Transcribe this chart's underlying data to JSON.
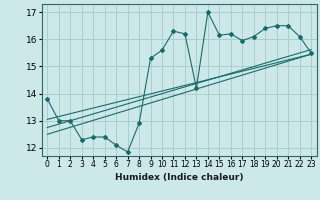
{
  "xlabel": "Humidex (Indice chaleur)",
  "ylabel": "",
  "bg_color": "#cce8e8",
  "grid_color": "#aacfcf",
  "line_color": "#1a6b6b",
  "xlim": [
    -0.5,
    23.5
  ],
  "ylim": [
    11.7,
    17.3
  ],
  "xticks": [
    0,
    1,
    2,
    3,
    4,
    5,
    6,
    7,
    8,
    9,
    10,
    11,
    12,
    13,
    14,
    15,
    16,
    17,
    18,
    19,
    20,
    21,
    22,
    23
  ],
  "yticks": [
    12,
    13,
    14,
    15,
    16,
    17
  ],
  "main_x": [
    0,
    1,
    2,
    3,
    4,
    5,
    6,
    7,
    8,
    9,
    10,
    11,
    12,
    13,
    14,
    15,
    16,
    17,
    18,
    19,
    20,
    21,
    22,
    23
  ],
  "main_y": [
    13.8,
    13.0,
    13.0,
    12.3,
    12.4,
    12.4,
    12.1,
    11.85,
    12.9,
    15.3,
    15.6,
    16.3,
    16.2,
    14.2,
    17.0,
    16.15,
    16.2,
    15.95,
    16.1,
    16.4,
    16.5,
    16.5,
    16.1,
    15.5
  ],
  "trend1_x": [
    0,
    23
  ],
  "trend1_y": [
    12.5,
    15.45
  ],
  "trend2_x": [
    0,
    23
  ],
  "trend2_y": [
    12.75,
    15.62
  ],
  "trend3_x": [
    0,
    23
  ],
  "trend3_y": [
    13.05,
    15.45
  ]
}
